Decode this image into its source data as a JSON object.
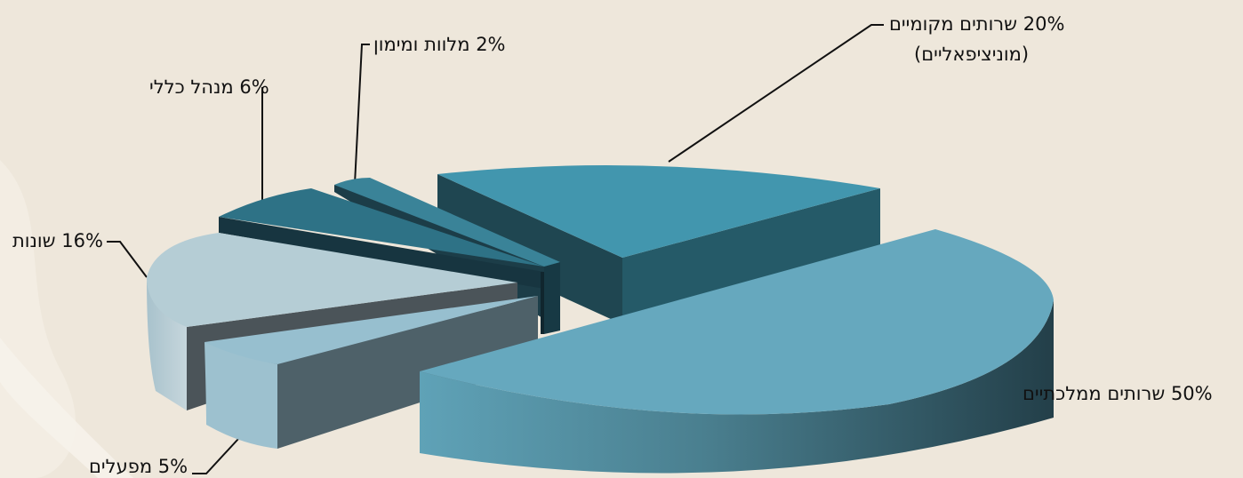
{
  "chart_data": {
    "type": "pie",
    "style": "3d-exploded",
    "slices": [
      {
        "label": "שרותים ממלכתיים",
        "value": 50,
        "label_text": "50% שרותים ממלכתיים",
        "color": "#66a8be"
      },
      {
        "label": "מפעלים",
        "value": 5,
        "label_text": "5% מפעלים",
        "color": "#97bfcf"
      },
      {
        "label": "שונות",
        "value": 16,
        "label_text": "16% שונות",
        "color": "#b5cdd5"
      },
      {
        "label": "מנהל כללי",
        "value": 6,
        "label_text": "6% מנהל כללי",
        "color": "#2e7286"
      },
      {
        "label": "מלוות ומימון",
        "value": 2,
        "label_text": "2% מלוות ומימון",
        "color": "#3a8398"
      },
      {
        "label": "שרותים מקומיים (מוניציפאליים)",
        "value": 20,
        "label_text_line1": "20% שרותים מקומיים",
        "label_text_line2": "(מוניציפאליים)",
        "color": "#4296ae"
      }
    ]
  }
}
